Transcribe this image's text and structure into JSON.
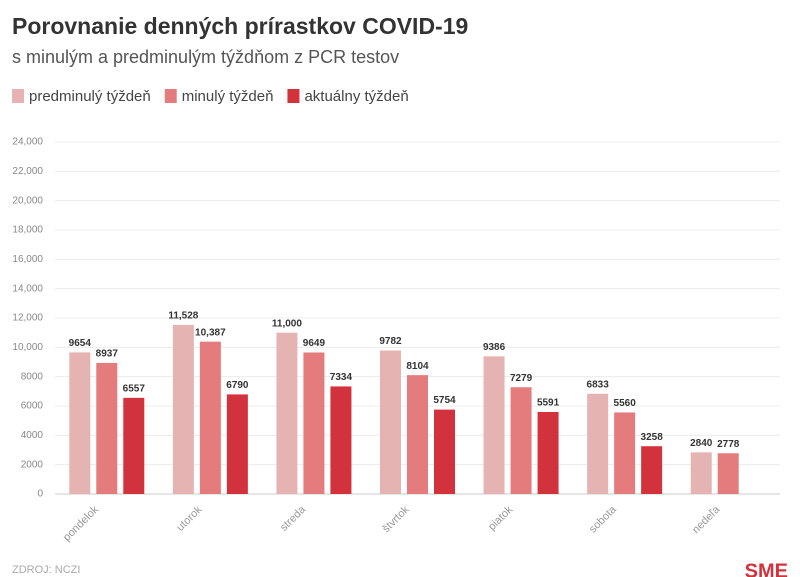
{
  "chart_data": {
    "type": "bar",
    "title": "Porovnanie denných prírastkov COVID-19",
    "subtitle": "s minulým a predminulým týždňom z PCR testov",
    "source": "ZDROJ: NCZI",
    "logo": "SME",
    "categories": [
      "pondelok",
      "utorok",
      "streda",
      "štvrtok",
      "piatok",
      "sobota",
      "nedeľa"
    ],
    "series": [
      {
        "name": "predminulý týždeň",
        "color": "#e6b3b3",
        "values": [
          9654,
          11528,
          11000,
          9782,
          9386,
          6833,
          2840
        ],
        "value_labels": [
          "9654",
          "11,528",
          "11,000",
          "9782",
          "9386",
          "6833",
          "2840"
        ]
      },
      {
        "name": "minulý týždeň",
        "color": "#e47b7c",
        "values": [
          8937,
          10387,
          9649,
          8104,
          7279,
          5560,
          2778
        ],
        "value_labels": [
          "8937",
          "10,387",
          "9649",
          "8104",
          "7279",
          "5560",
          "2778"
        ]
      },
      {
        "name": "aktuálny týždeň",
        "color": "#d2323b",
        "values": [
          6557,
          6790,
          7334,
          5754,
          5591,
          3258,
          null
        ],
        "value_labels": [
          "6557",
          "6790",
          "7334",
          "5754",
          "5591",
          "3258",
          null
        ]
      }
    ],
    "ylim": [
      0,
      24000
    ],
    "yticks": [
      0,
      2000,
      4000,
      6000,
      8000,
      {
        "value": 10000,
        "label": "10,000"
      },
      {
        "value": 12000,
        "label": "12,000"
      },
      {
        "value": 14000,
        "label": "14,000"
      },
      {
        "value": 16000,
        "label": "16,000"
      },
      {
        "value": 18000,
        "label": "18,000"
      },
      {
        "value": 20000,
        "label": "20,000"
      },
      {
        "value": 22000,
        "label": "22,000"
      },
      {
        "value": 24000,
        "label": "24,000"
      }
    ],
    "grid": true
  }
}
